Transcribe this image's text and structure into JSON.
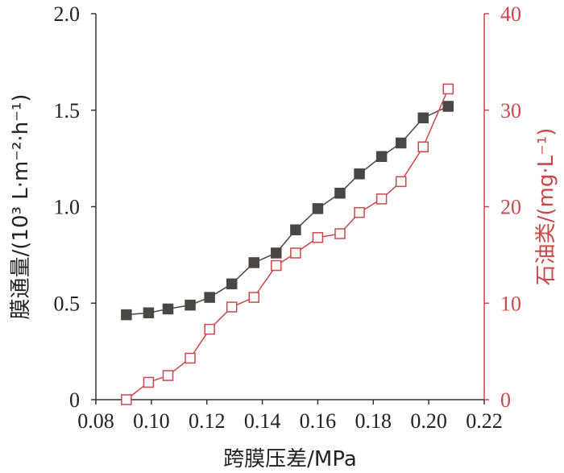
{
  "colors": {
    "left_series": "#4a4644",
    "right_series": "#c9494b",
    "left_axis": "#333333",
    "right_axis": "#c9494b"
  },
  "chart_data": {
    "type": "line",
    "xlabel": "跨膜压差/MPa",
    "ylabel_left": "膜通量/(10³ L·m⁻²·h⁻¹)",
    "ylabel_right": "石油类/(mg·L⁻¹)",
    "xlim": [
      0.08,
      0.22
    ],
    "ylim_left": [
      0,
      2.0
    ],
    "ylim_right": [
      0,
      40
    ],
    "x_ticks": [
      "0.08",
      "0.10",
      "0.12",
      "0.14",
      "0.16",
      "0.18",
      "0.20",
      "0.22"
    ],
    "y_ticks_left": [
      "0",
      "0.5",
      "1.0",
      "1.5",
      "2.0"
    ],
    "y_ticks_right": [
      "0",
      "10",
      "20",
      "30",
      "40"
    ],
    "grid": false,
    "series": [
      {
        "axis": "left",
        "marker": "filled-square",
        "x": [
          0.091,
          0.099,
          0.106,
          0.114,
          0.121,
          0.129,
          0.137,
          0.145,
          0.152,
          0.16,
          0.168,
          0.175,
          0.183,
          0.19,
          0.198,
          0.207
        ],
        "y": [
          0.44,
          0.45,
          0.47,
          0.49,
          0.53,
          0.6,
          0.71,
          0.76,
          0.88,
          0.99,
          1.07,
          1.17,
          1.26,
          1.33,
          1.46,
          1.52
        ]
      },
      {
        "axis": "right",
        "marker": "open-square",
        "x": [
          0.091,
          0.099,
          0.106,
          0.114,
          0.121,
          0.129,
          0.137,
          0.145,
          0.152,
          0.16,
          0.168,
          0.175,
          0.183,
          0.19,
          0.198,
          0.207
        ],
        "y": [
          0.0,
          1.8,
          2.5,
          4.3,
          7.3,
          9.6,
          10.6,
          13.9,
          15.2,
          16.8,
          17.2,
          19.4,
          20.8,
          22.6,
          26.2,
          32.2
        ]
      }
    ]
  }
}
